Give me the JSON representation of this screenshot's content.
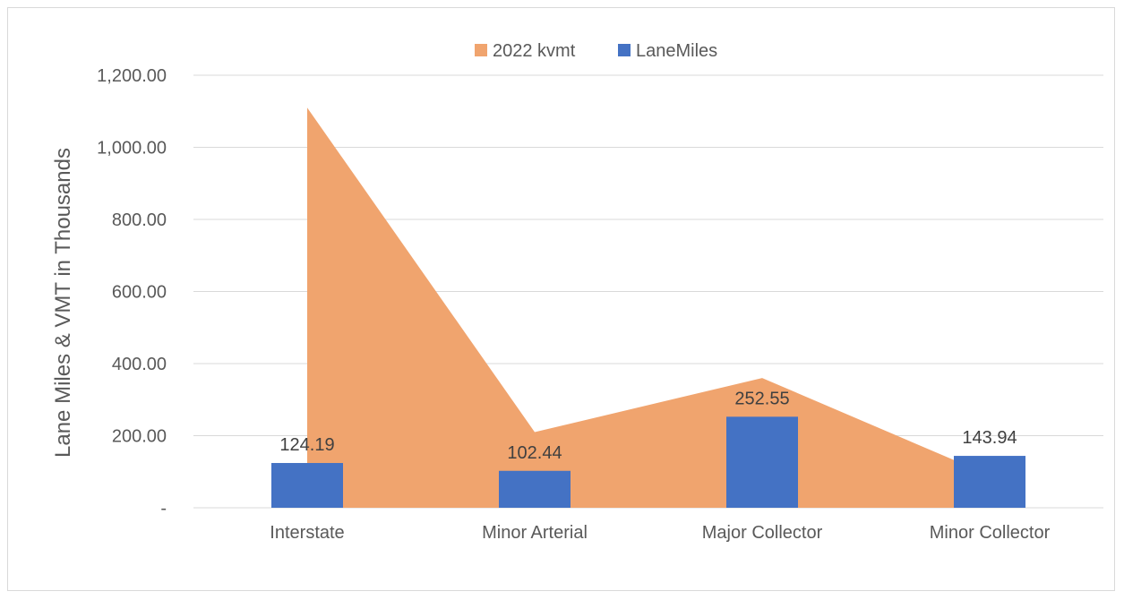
{
  "chart_data": {
    "type": "bar",
    "categories": [
      "Interstate",
      "Minor Arterial",
      "Major Collector",
      "Minor Collector"
    ],
    "series": [
      {
        "name": "2022 kvmt",
        "type": "area",
        "color": "#F0A46E",
        "values": [
          1110,
          210,
          360,
          90
        ]
      },
      {
        "name": "LaneMiles",
        "type": "bar",
        "color": "#4472C4",
        "values": [
          124.19,
          102.44,
          252.55,
          143.94
        ],
        "data_labels": [
          "124.19",
          "102.44",
          "252.55",
          "143.94"
        ]
      }
    ],
    "ylabel": "Lane Miles & VMT in Thousands",
    "xlabel": "",
    "ylim": [
      0,
      1200
    ],
    "y_ticks": [
      {
        "value": 0,
        "label": "-"
      },
      {
        "value": 200,
        "label": "200.00"
      },
      {
        "value": 400,
        "label": "400.00"
      },
      {
        "value": 600,
        "label": "600.00"
      },
      {
        "value": 800,
        "label": "800.00"
      },
      {
        "value": 1000,
        "label": "1,000.00"
      },
      {
        "value": 1200,
        "label": "1,200.00"
      }
    ],
    "grid": true,
    "legend": {
      "position": "top-center",
      "entries": [
        "2022 kvmt",
        "LaneMiles"
      ]
    }
  }
}
